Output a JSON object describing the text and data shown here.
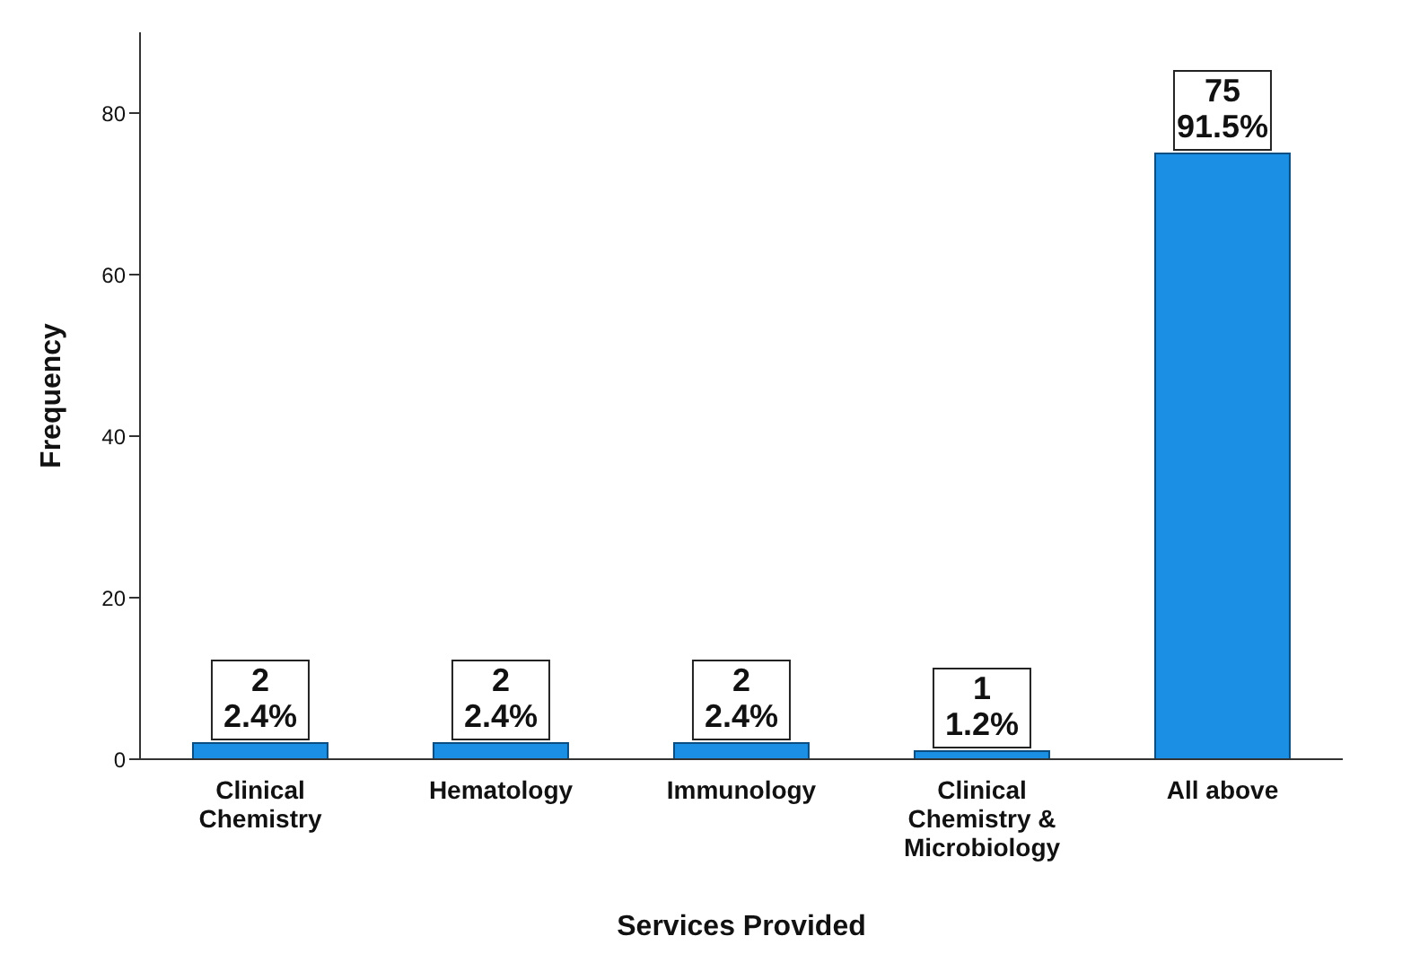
{
  "chart_data": {
    "type": "bar",
    "xlabel": "Services Provided",
    "ylabel": "Frequency",
    "categories": [
      "Clinical\nChemistry",
      "Hematology",
      "Immunology",
      "Clinical\nChemistry &\nMicrobiology",
      "All above"
    ],
    "values": [
      2,
      2,
      2,
      1,
      75
    ],
    "value_labels": [
      "2\n2.4%",
      "2\n2.4%",
      "2\n2.4%",
      "1\n1.2%",
      "75\n91.5%"
    ],
    "color": "#1a8fe3",
    "ylim": [
      0,
      90
    ],
    "yticks": [
      0,
      20,
      40,
      60,
      80
    ],
    "grid": false,
    "legend": false
  }
}
